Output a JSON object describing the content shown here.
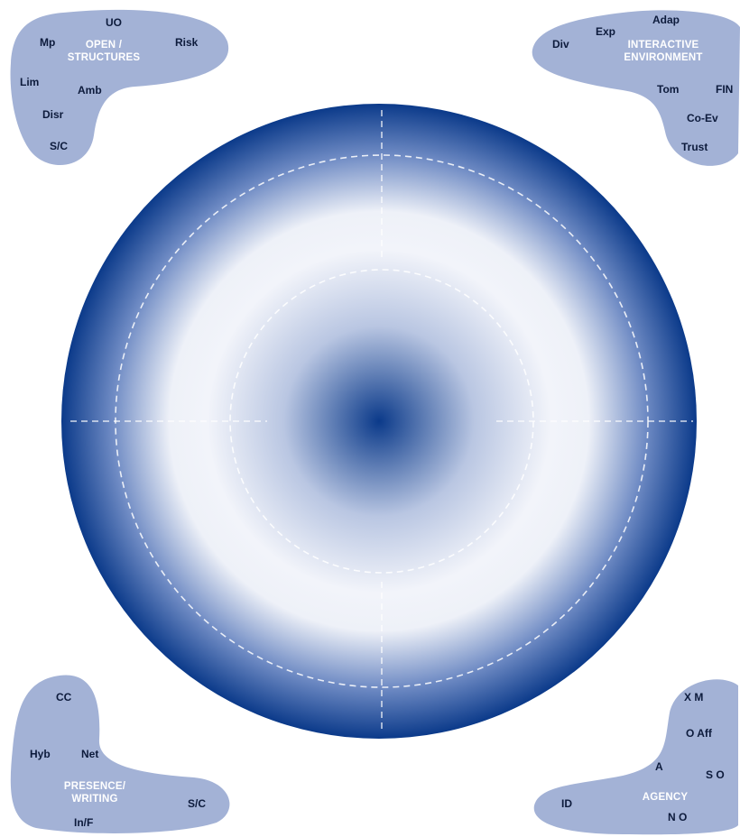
{
  "groups": {
    "open_structures": {
      "title": "OPEN /\nSTRUCTURES",
      "labels": [
        "UO",
        "Mp",
        "Risk",
        "Lim",
        "Amb",
        "Disr",
        "S/C"
      ]
    },
    "interactive_environment": {
      "title": "INTERACTIVE\nENVIRONMENT",
      "labels": [
        "Adap",
        "Exp",
        "Div",
        "Tom",
        "FIN",
        "Co-Ev",
        "Trust"
      ]
    },
    "presence_writing": {
      "title": "PRESENCE/\nWRITING",
      "labels": [
        "CC",
        "Hyb",
        "Net",
        "S/C",
        "In/F"
      ]
    },
    "agency": {
      "title": "AGENCY",
      "labels": [
        "X M",
        "O Aff",
        "A",
        "S O",
        "ID",
        "N O"
      ]
    }
  },
  "colors": {
    "blob": "#a3b2d6",
    "ring_dark": "#0b3a8a",
    "ring_light": "#eef1f8",
    "dash": "#ffffff"
  }
}
